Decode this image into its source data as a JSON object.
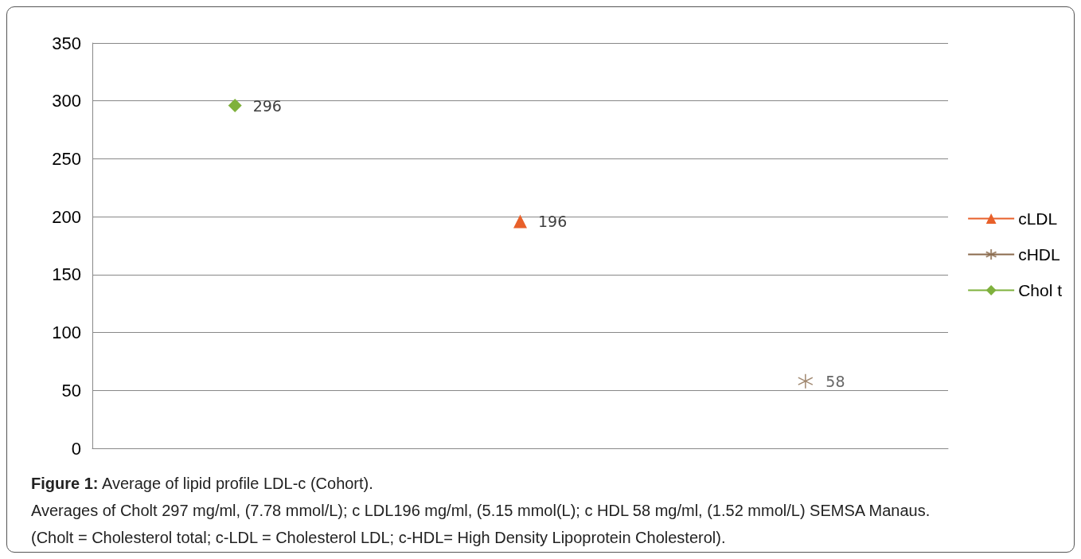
{
  "chart_data": {
    "type": "line",
    "categories": [
      null,
      null,
      null
    ],
    "series": [
      {
        "name": "cLDL",
        "color": "#e8602a",
        "marker": "triangle",
        "values": [
          null,
          196,
          null
        ]
      },
      {
        "name": "cHDL",
        "color": "#8a6a4c",
        "marker": "cross",
        "values": [
          null,
          null,
          58
        ]
      },
      {
        "name": "Chol t",
        "color": "#7fb13d",
        "marker": "diamond",
        "values": [
          296,
          null,
          null
        ]
      }
    ],
    "ylim": [
      0,
      350
    ],
    "yticks": [
      0,
      50,
      100,
      150,
      200,
      250,
      300,
      350
    ],
    "grid": "y",
    "legend": "right",
    "data_labels": true,
    "annotations": [
      "Figure 1: Average of lipid profile LDL-c (Cohort).",
      "Averages of Cholt 297 mg/ml, (7.78 mmol/L); c LDL196 mg/ml, (5.15 mmol(L); c HDL 58 mg/ml, (1.52 mmol/L) SEMSA Manaus.",
      "(Cholt = Cholesterol total; c-LDL = Cholesterol LDL; c-HDL= High Density Lipoprotein Cholesterol)."
    ]
  }
}
